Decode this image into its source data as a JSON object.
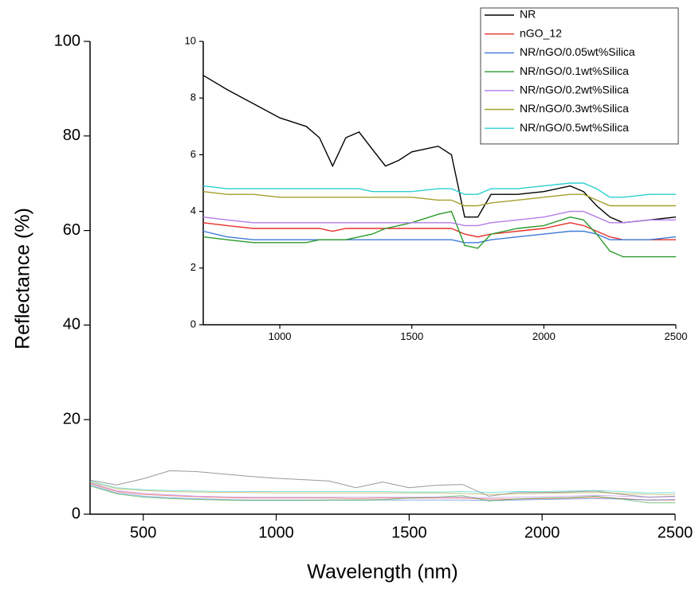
{
  "chart_data": [
    {
      "type": "line",
      "xlabel": "Wavelength (nm)",
      "ylabel": "Reflectance (%)",
      "xlim": [
        300,
        2500
      ],
      "ylim": [
        0,
        100
      ],
      "xticks": [
        500,
        1000,
        1500,
        2000,
        2500
      ],
      "yticks": [
        0,
        20,
        40,
        60,
        80,
        100
      ],
      "x": [
        300,
        400,
        500,
        600,
        700,
        800,
        900,
        1000,
        1100,
        1200,
        1300,
        1400,
        1500,
        1600,
        1700,
        1800,
        1900,
        2000,
        2100,
        2200,
        2300,
        2400,
        2500
      ],
      "series": [
        {
          "color": "#555555",
          "values": [
            7.2,
            6.2,
            7.5,
            9.2,
            9.0,
            8.5,
            8.0,
            7.6,
            7.3,
            7.0,
            5.6,
            6.8,
            5.6,
            6.1,
            6.3,
            3.8,
            4.6,
            4.6,
            4.7,
            4.9,
            4.2,
            3.6,
            3.8
          ]
        },
        {
          "color": "#e8302a",
          "values": [
            6.5,
            4.8,
            4.2,
            3.9,
            3.7,
            3.5,
            3.4,
            3.4,
            3.4,
            3.4,
            3.3,
            3.4,
            3.4,
            3.4,
            3.4,
            3.2,
            3.2,
            3.3,
            3.4,
            3.6,
            3.3,
            3.0,
            3.0
          ]
        },
        {
          "color": "#3d7bd9",
          "values": [
            6.2,
            4.5,
            3.8,
            3.5,
            3.3,
            3.1,
            3.0,
            3.0,
            3.0,
            3.0,
            3.0,
            3.0,
            3.0,
            3.0,
            3.0,
            2.9,
            3.0,
            3.1,
            3.2,
            3.3,
            3.2,
            3.0,
            3.1
          ]
        },
        {
          "color": "#2a9a2a",
          "values": [
            6.0,
            4.3,
            3.6,
            3.3,
            3.1,
            3.0,
            2.9,
            2.9,
            2.9,
            3.0,
            3.0,
            3.1,
            3.4,
            3.6,
            3.9,
            2.8,
            3.2,
            3.4,
            3.5,
            3.8,
            3.2,
            2.4,
            2.4
          ]
        },
        {
          "color": "#b27de8",
          "values": [
            6.6,
            5.0,
            4.4,
            4.1,
            3.8,
            3.7,
            3.6,
            3.6,
            3.6,
            3.6,
            3.6,
            3.6,
            3.6,
            3.6,
            3.6,
            3.5,
            3.6,
            3.7,
            3.8,
            4.0,
            3.8,
            3.6,
            3.7
          ]
        },
        {
          "color": "#a6a02a",
          "values": [
            6.8,
            5.4,
            5.0,
            4.8,
            4.7,
            4.6,
            4.6,
            4.5,
            4.5,
            4.5,
            4.5,
            4.5,
            4.5,
            4.5,
            4.4,
            4.2,
            4.3,
            4.4,
            4.5,
            4.6,
            4.4,
            4.2,
            4.2
          ]
        },
        {
          "color": "#2ecfd0",
          "values": [
            7.0,
            5.6,
            5.2,
            5.0,
            4.9,
            4.8,
            4.8,
            4.8,
            4.8,
            4.8,
            4.8,
            4.8,
            4.7,
            4.7,
            4.8,
            4.6,
            4.8,
            4.8,
            4.9,
            5.0,
            4.8,
            4.5,
            4.6
          ]
        }
      ]
    },
    {
      "type": "line",
      "legend": "top-right",
      "xlim": [
        710,
        2500
      ],
      "ylim": [
        0,
        10
      ],
      "xticks": [
        1000,
        1500,
        2000,
        2500
      ],
      "yticks": [
        0,
        2,
        4,
        6,
        8,
        10
      ],
      "x": [
        710,
        800,
        900,
        1000,
        1100,
        1150,
        1200,
        1250,
        1300,
        1350,
        1400,
        1450,
        1500,
        1600,
        1650,
        1700,
        1750,
        1800,
        1900,
        2000,
        2100,
        2150,
        2200,
        2250,
        2300,
        2400,
        2500
      ],
      "series": [
        {
          "name": "NR",
          "color": "#000000",
          "values": [
            8.8,
            8.3,
            7.8,
            7.3,
            7.0,
            6.6,
            5.6,
            6.6,
            6.8,
            6.2,
            5.6,
            5.8,
            6.1,
            6.3,
            6.0,
            3.8,
            3.8,
            4.6,
            4.6,
            4.7,
            4.9,
            4.7,
            4.2,
            3.8,
            3.6,
            3.7,
            3.8
          ]
        },
        {
          "name": "nGO_12",
          "color": "#e8302a",
          "values": [
            3.6,
            3.5,
            3.4,
            3.4,
            3.4,
            3.4,
            3.3,
            3.4,
            3.4,
            3.4,
            3.4,
            3.4,
            3.4,
            3.4,
            3.4,
            3.2,
            3.1,
            3.2,
            3.3,
            3.4,
            3.6,
            3.5,
            3.3,
            3.1,
            3.0,
            3.0,
            3.0
          ]
        },
        {
          "name": "NR/nGO/0.05wt%Silica",
          "color": "#3d7bd9",
          "values": [
            3.3,
            3.1,
            3.0,
            3.0,
            3.0,
            3.0,
            3.0,
            3.0,
            3.0,
            3.0,
            3.0,
            3.0,
            3.0,
            3.0,
            3.0,
            2.9,
            2.9,
            3.0,
            3.1,
            3.2,
            3.3,
            3.3,
            3.2,
            3.0,
            3.0,
            3.0,
            3.1
          ]
        },
        {
          "name": "NR/nGO/0.1wt%Silica",
          "color": "#2a9a2a",
          "values": [
            3.1,
            3.0,
            2.9,
            2.9,
            2.9,
            3.0,
            3.0,
            3.0,
            3.1,
            3.2,
            3.4,
            3.5,
            3.6,
            3.9,
            4.0,
            2.8,
            2.7,
            3.2,
            3.4,
            3.5,
            3.8,
            3.7,
            3.2,
            2.6,
            2.4,
            2.4,
            2.4
          ]
        },
        {
          "name": "NR/nGO/0.2wt%Silica",
          "color": "#b27de8",
          "values": [
            3.8,
            3.7,
            3.6,
            3.6,
            3.6,
            3.6,
            3.6,
            3.6,
            3.6,
            3.6,
            3.6,
            3.6,
            3.6,
            3.6,
            3.6,
            3.5,
            3.5,
            3.6,
            3.7,
            3.8,
            4.0,
            4.0,
            3.8,
            3.6,
            3.6,
            3.7,
            3.7
          ]
        },
        {
          "name": "NR/nGO/0.3wt%Silica",
          "color": "#a6a02a",
          "values": [
            4.7,
            4.6,
            4.6,
            4.5,
            4.5,
            4.5,
            4.5,
            4.5,
            4.5,
            4.5,
            4.5,
            4.5,
            4.5,
            4.4,
            4.4,
            4.2,
            4.2,
            4.3,
            4.4,
            4.5,
            4.6,
            4.6,
            4.4,
            4.2,
            4.2,
            4.2,
            4.2
          ]
        },
        {
          "name": "NR/nGO/0.5wt%Silica",
          "color": "#2ecfd0",
          "values": [
            4.9,
            4.8,
            4.8,
            4.8,
            4.8,
            4.8,
            4.8,
            4.8,
            4.8,
            4.7,
            4.7,
            4.7,
            4.7,
            4.8,
            4.8,
            4.6,
            4.6,
            4.8,
            4.8,
            4.9,
            5.0,
            5.0,
            4.8,
            4.5,
            4.5,
            4.6,
            4.6
          ]
        }
      ]
    }
  ]
}
